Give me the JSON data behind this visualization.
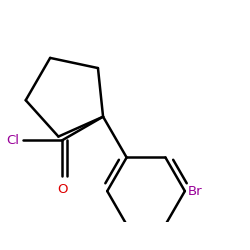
{
  "bg_color": "#ffffff",
  "bond_color": "#000000",
  "bond_lw": 1.8,
  "cl_color": "#990099",
  "br_color": "#990099",
  "o_color": "#dd0000",
  "fig_size": [
    2.5,
    2.5
  ],
  "dpi": 100,
  "xlim": [
    -1.8,
    2.6
  ],
  "ylim": [
    -1.9,
    1.6
  ]
}
